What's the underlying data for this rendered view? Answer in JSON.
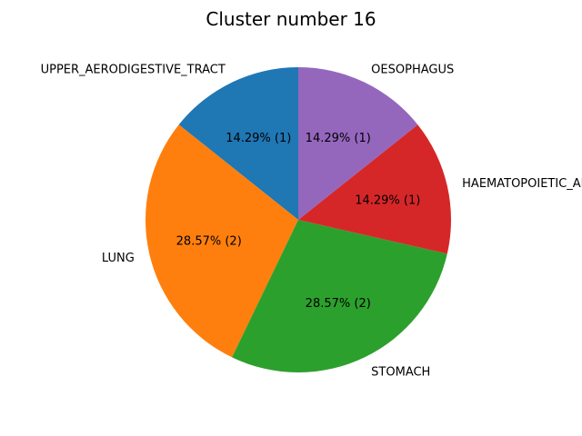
{
  "chart_data": {
    "type": "pie",
    "title": "Cluster number 16",
    "start_angle_deg": 90,
    "direction": "counterclockwise",
    "slices": [
      {
        "label": "UPPER_AERODIGESTIVE_TRACT",
        "value": 1,
        "pct_label": "14.29%  (1)",
        "color": "#1f77b4"
      },
      {
        "label": "LUNG",
        "value": 2,
        "pct_label": "28.57%  (2)",
        "color": "#ff7f0e"
      },
      {
        "label": "STOMACH",
        "value": 2,
        "pct_label": "28.57%  (2)",
        "color": "#2ca02c"
      },
      {
        "label": "HAEMATOPOIETIC_AND_LYMPHOID_TISSUE",
        "value": 1,
        "pct_label": "14.29%  (1)",
        "color": "#d62728"
      },
      {
        "label": "OESOPHAGUS",
        "value": 1,
        "pct_label": "14.29%  (1)",
        "color": "#9467bd"
      }
    ]
  }
}
